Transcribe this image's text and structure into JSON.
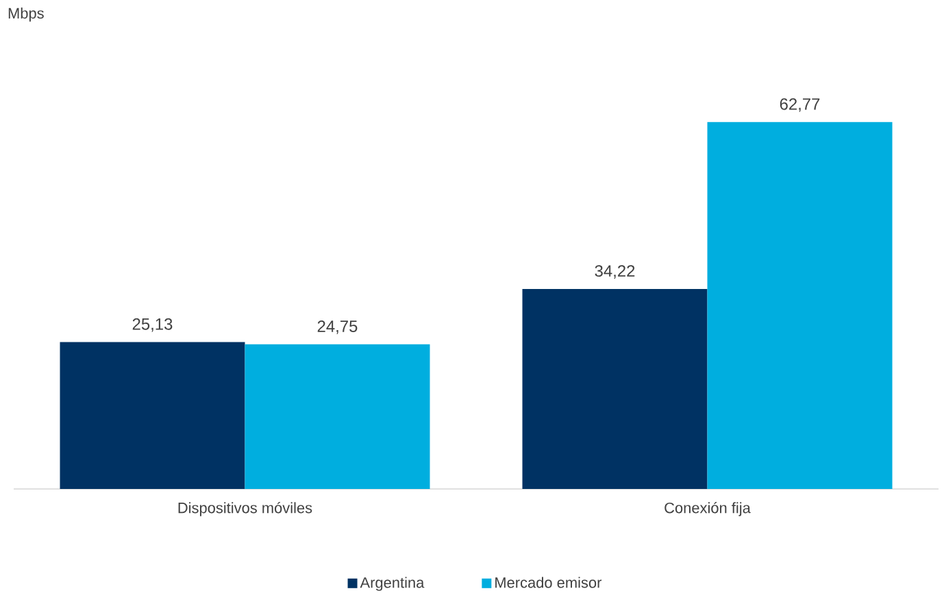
{
  "chart_data": {
    "type": "bar",
    "annotations": [
      "Mbps"
    ],
    "categories": [
      "Dispositivos móviles",
      "Conexión fija"
    ],
    "series": [
      {
        "name": "Argentina",
        "color": "#003263",
        "values": [
          25.13,
          34.22
        ],
        "value_labels": [
          "25,13",
          "34,22"
        ]
      },
      {
        "name": "Mercado emisor",
        "color": "#00aedf",
        "values": [
          24.75,
          62.77
        ],
        "value_labels": [
          "24,75",
          "62,77"
        ]
      }
    ],
    "legend": "bottom"
  }
}
